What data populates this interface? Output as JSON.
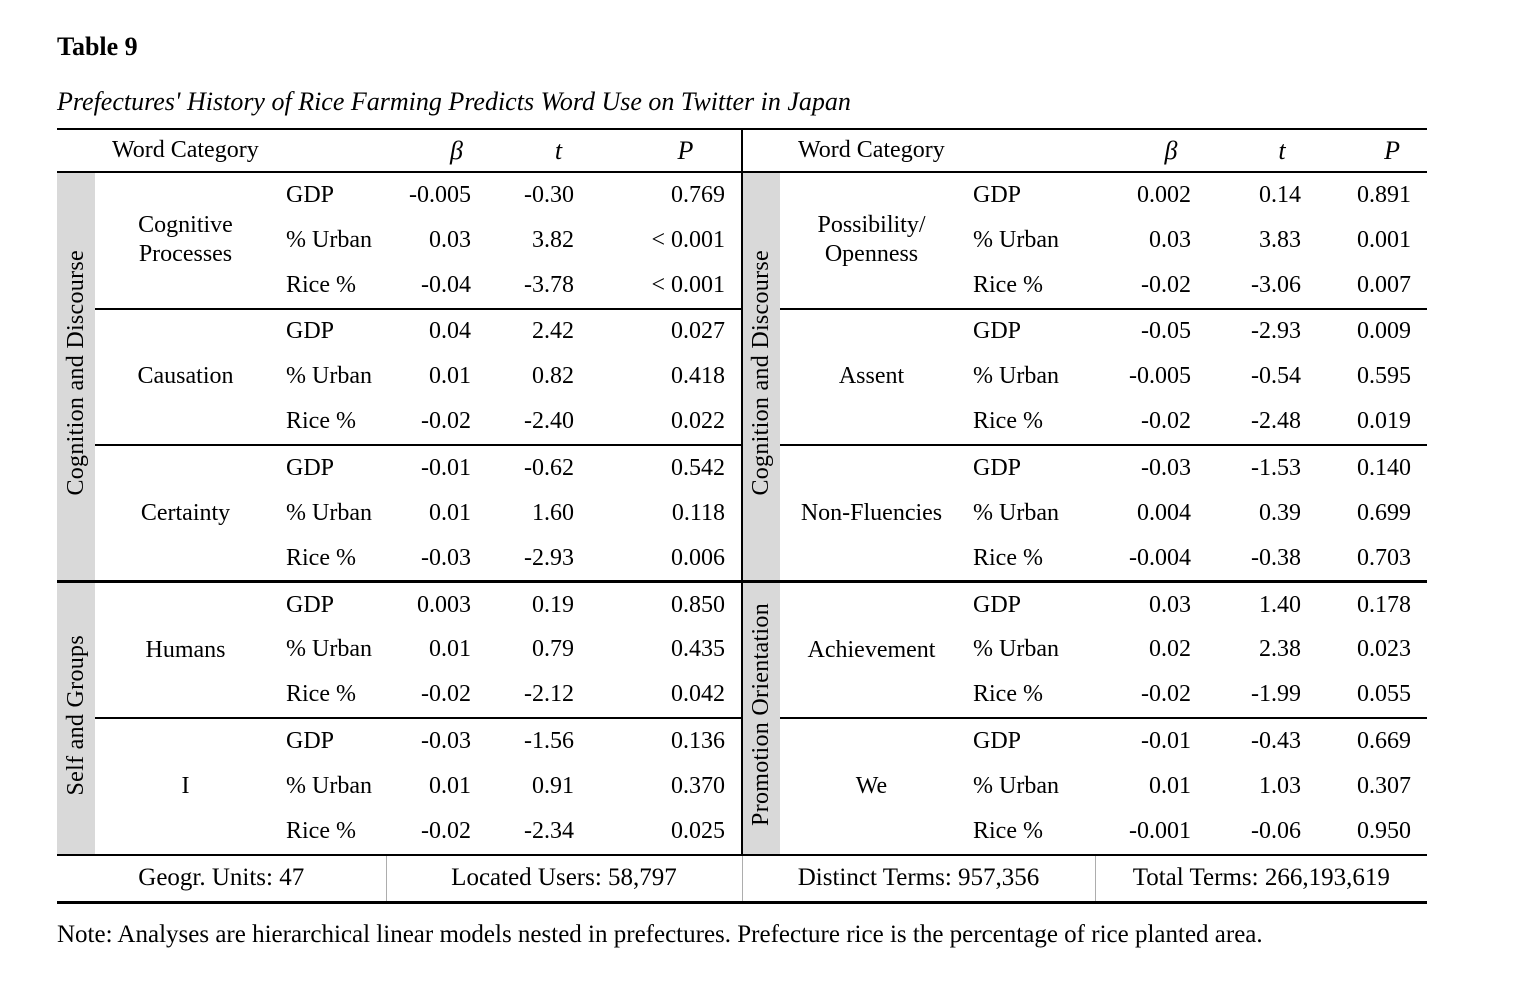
{
  "page": {
    "title": "Table 9",
    "subtitle": "Prefectures' History of Rice Farming Predicts Word Use on Twitter in Japan",
    "note": "Note: Analyses are hierarchical linear models nested in prefectures. Prefecture rice is the percentage of rice planted area."
  },
  "table": {
    "column_headers": {
      "word_category": "Word Category",
      "beta": "β",
      "t": "t",
      "p": "P"
    },
    "halves": [
      {
        "side": "left",
        "sections": [
          {
            "label": "Cognition and Discourse",
            "groups": [
              {
                "category": "Cognitive\nProcesses",
                "rows": [
                  {
                    "predictor": "GDP",
                    "beta": "-0.005",
                    "t": "-0.30",
                    "p": "0.769"
                  },
                  {
                    "predictor": "% Urban",
                    "beta": "0.03",
                    "t": "3.82",
                    "p": "< 0.001"
                  },
                  {
                    "predictor": "Rice %",
                    "beta": "-0.04",
                    "t": "-3.78",
                    "p": "< 0.001"
                  }
                ]
              },
              {
                "category": "Causation",
                "rows": [
                  {
                    "predictor": "GDP",
                    "beta": "0.04",
                    "t": "2.42",
                    "p": "0.027"
                  },
                  {
                    "predictor": "% Urban",
                    "beta": "0.01",
                    "t": "0.82",
                    "p": "0.418"
                  },
                  {
                    "predictor": "Rice %",
                    "beta": "-0.02",
                    "t": "-2.40",
                    "p": "0.022"
                  }
                ]
              },
              {
                "category": "Certainty",
                "rows": [
                  {
                    "predictor": "GDP",
                    "beta": "-0.01",
                    "t": "-0.62",
                    "p": "0.542"
                  },
                  {
                    "predictor": "% Urban",
                    "beta": "0.01",
                    "t": "1.60",
                    "p": "0.118"
                  },
                  {
                    "predictor": "Rice %",
                    "beta": "-0.03",
                    "t": "-2.93",
                    "p": "0.006"
                  }
                ]
              }
            ]
          },
          {
            "label": "Self and Groups",
            "groups": [
              {
                "category": "Humans",
                "rows": [
                  {
                    "predictor": "GDP",
                    "beta": "0.003",
                    "t": "0.19",
                    "p": "0.850"
                  },
                  {
                    "predictor": "% Urban",
                    "beta": "0.01",
                    "t": "0.79",
                    "p": "0.435"
                  },
                  {
                    "predictor": "Rice %",
                    "beta": "-0.02",
                    "t": "-2.12",
                    "p": "0.042"
                  }
                ]
              },
              {
                "category": "I",
                "rows": [
                  {
                    "predictor": "GDP",
                    "beta": "-0.03",
                    "t": "-1.56",
                    "p": "0.136"
                  },
                  {
                    "predictor": "% Urban",
                    "beta": "0.01",
                    "t": "0.91",
                    "p": "0.370"
                  },
                  {
                    "predictor": "Rice %",
                    "beta": "-0.02",
                    "t": "-2.34",
                    "p": "0.025"
                  }
                ]
              }
            ]
          }
        ]
      },
      {
        "side": "right",
        "sections": [
          {
            "label": "Cognition and Discourse",
            "groups": [
              {
                "category": "Possibility/\nOpenness",
                "rows": [
                  {
                    "predictor": "GDP",
                    "beta": "0.002",
                    "t": "0.14",
                    "p": "0.891"
                  },
                  {
                    "predictor": "% Urban",
                    "beta": "0.03",
                    "t": "3.83",
                    "p": "0.001"
                  },
                  {
                    "predictor": "Rice %",
                    "beta": "-0.02",
                    "t": "-3.06",
                    "p": "0.007"
                  }
                ]
              },
              {
                "category": "Assent",
                "rows": [
                  {
                    "predictor": "GDP",
                    "beta": "-0.05",
                    "t": "-2.93",
                    "p": "0.009"
                  },
                  {
                    "predictor": "% Urban",
                    "beta": "-0.005",
                    "t": "-0.54",
                    "p": "0.595"
                  },
                  {
                    "predictor": "Rice %",
                    "beta": "-0.02",
                    "t": "-2.48",
                    "p": "0.019"
                  }
                ]
              },
              {
                "category": "Non-Fluencies",
                "rows": [
                  {
                    "predictor": "GDP",
                    "beta": "-0.03",
                    "t": "-1.53",
                    "p": "0.140"
                  },
                  {
                    "predictor": "% Urban",
                    "beta": "0.004",
                    "t": "0.39",
                    "p": "0.699"
                  },
                  {
                    "predictor": "Rice %",
                    "beta": "-0.004",
                    "t": "-0.38",
                    "p": "0.703"
                  }
                ]
              }
            ]
          },
          {
            "label": "Promotion Orientation",
            "groups": [
              {
                "category": "Achievement",
                "rows": [
                  {
                    "predictor": "GDP",
                    "beta": "0.03",
                    "t": "1.40",
                    "p": "0.178"
                  },
                  {
                    "predictor": "% Urban",
                    "beta": "0.02",
                    "t": "2.38",
                    "p": "0.023"
                  },
                  {
                    "predictor": "Rice %",
                    "beta": "-0.02",
                    "t": "-1.99",
                    "p": "0.055"
                  }
                ]
              },
              {
                "category": "We",
                "rows": [
                  {
                    "predictor": "GDP",
                    "beta": "-0.01",
                    "t": "-0.43",
                    "p": "0.669"
                  },
                  {
                    "predictor": "% Urban",
                    "beta": "0.01",
                    "t": "1.03",
                    "p": "0.307"
                  },
                  {
                    "predictor": "Rice %",
                    "beta": "-0.001",
                    "t": "-0.06",
                    "p": "0.950"
                  }
                ]
              }
            ]
          }
        ]
      }
    ],
    "footer_stats": [
      "Geogr. Units: 47",
      "Located Users: 58,797",
      "Distinct Terms: 957,356",
      "Total Terms: 266,193,619"
    ]
  },
  "colors": {
    "strip_gray": "#d9d9d9",
    "rule_black": "#000000"
  }
}
